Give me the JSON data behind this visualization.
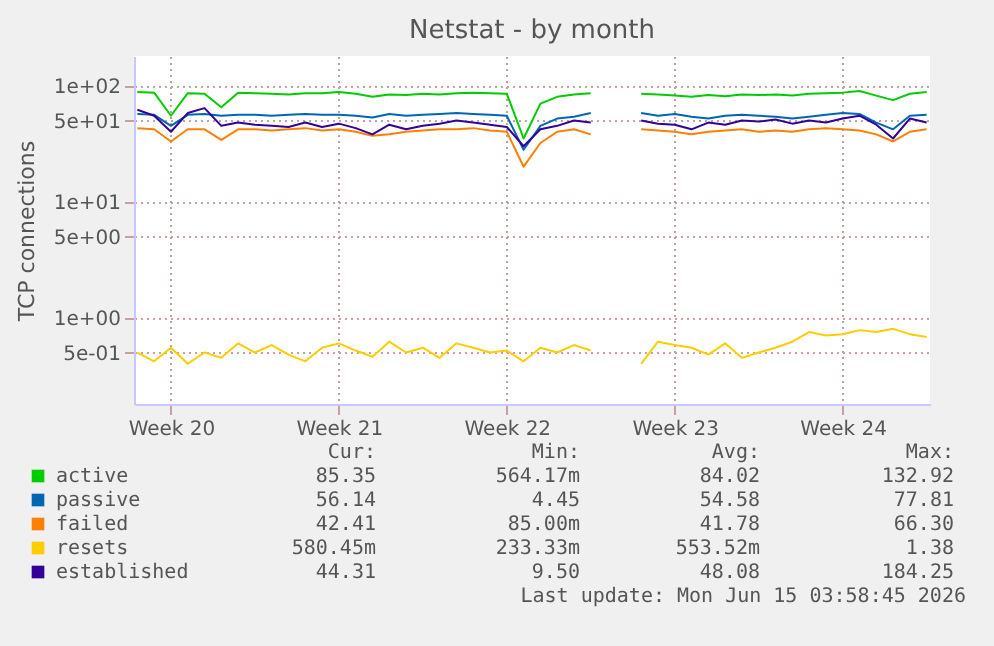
{
  "chart_data": {
    "type": "line",
    "title": "Netstat - by month",
    "ylabel": "TCP connections",
    "log": "y",
    "grid": true,
    "legend": "bottom left",
    "categories": [
      null,
      null,
      "Week 20",
      null,
      null,
      null,
      null,
      null,
      null,
      null,
      null,
      null,
      "Week 21",
      null,
      null,
      null,
      null,
      null,
      null,
      null,
      null,
      null,
      "Week 22",
      null,
      null,
      null,
      null,
      null,
      null,
      null,
      null,
      null,
      "Week 23",
      null,
      null,
      null,
      null,
      null,
      null,
      null,
      null,
      null,
      "Week 24",
      null,
      null,
      null,
      null,
      null
    ],
    "ylim": [
      0.18,
      180
    ],
    "yticks": [
      {
        "value": 0.5,
        "label": "5e-01"
      },
      {
        "value": 1,
        "label": "1e+00"
      },
      {
        "value": 5,
        "label": "5e+00"
      },
      {
        "value": 10,
        "label": "1e+01"
      },
      {
        "value": 50,
        "label": "5e+01"
      },
      {
        "value": 100,
        "label": "1e+02"
      }
    ],
    "series": [
      {
        "name": "active",
        "color": "#00cc00",
        "values": [
          88,
          87,
          55,
          86,
          85,
          65,
          87,
          86,
          85,
          84,
          86,
          86,
          88,
          85,
          80,
          84,
          83,
          85,
          84,
          86,
          87,
          86,
          85,
          35,
          70,
          80,
          84,
          86,
          null,
          null,
          85,
          84,
          82,
          80,
          83,
          81,
          84,
          83,
          84,
          82,
          85,
          86,
          87,
          90,
          82,
          75,
          85,
          88
        ]
      },
      {
        "name": "passive",
        "color": "#0066b3",
        "values": [
          57,
          56,
          45,
          56,
          57,
          55,
          56,
          56,
          55,
          56,
          57,
          56,
          56,
          55,
          53,
          57,
          55,
          56,
          57,
          58,
          57,
          56,
          55,
          28,
          45,
          52,
          54,
          58,
          null,
          null,
          58,
          55,
          57,
          54,
          52,
          55,
          56,
          55,
          54,
          52,
          54,
          56,
          58,
          57,
          48,
          42,
          55,
          56
        ]
      },
      {
        "name": "failed",
        "color": "#ff8000",
        "values": [
          43,
          42,
          33,
          42,
          42,
          34,
          42,
          42,
          41,
          42,
          43,
          41,
          42,
          40,
          37,
          38,
          40,
          41,
          42,
          42,
          43,
          41,
          40,
          20,
          32,
          40,
          42,
          38,
          null,
          null,
          42,
          41,
          40,
          38,
          40,
          41,
          42,
          40,
          41,
          40,
          42,
          43,
          42,
          41,
          38,
          33,
          40,
          42
        ]
      },
      {
        "name": "resets",
        "color": "#ffcc00",
        "values": [
          0.5,
          0.42,
          0.55,
          0.4,
          0.5,
          0.45,
          0.6,
          0.5,
          0.58,
          0.48,
          0.42,
          0.55,
          0.6,
          0.52,
          0.46,
          0.62,
          0.5,
          0.55,
          0.45,
          0.6,
          0.55,
          0.5,
          0.52,
          0.42,
          0.55,
          0.5,
          0.58,
          0.52,
          null,
          null,
          0.4,
          0.62,
          0.58,
          0.55,
          0.48,
          0.6,
          0.45,
          0.5,
          0.55,
          0.62,
          0.75,
          0.7,
          0.72,
          0.78,
          0.75,
          0.8,
          0.72,
          0.68
        ]
      },
      {
        "name": "established",
        "color": "#330099",
        "values": [
          62,
          55,
          40,
          58,
          64,
          45,
          48,
          46,
          45,
          44,
          48,
          44,
          47,
          43,
          38,
          46,
          42,
          45,
          47,
          50,
          48,
          46,
          44,
          30,
          42,
          45,
          50,
          48,
          null,
          null,
          50,
          47,
          46,
          42,
          48,
          46,
          50,
          49,
          51,
          47,
          50,
          48,
          52,
          55,
          46,
          35,
          52,
          48
        ]
      }
    ],
    "annotations": [
      "Cur:",
      "Min:",
      "Avg:",
      "Max:",
      "85.35",
      "564.17m",
      "84.02",
      "132.92",
      "56.14",
      "4.45",
      "54.58",
      "77.81",
      "42.41",
      "85.00m",
      "41.78",
      "66.30",
      "580.45m",
      "233.33m",
      "553.52m",
      "1.38",
      "44.31",
      "9.50",
      "48.08",
      "184.25",
      "Last update: Mon Jun 15 03:58:45 2026"
    ]
  }
}
